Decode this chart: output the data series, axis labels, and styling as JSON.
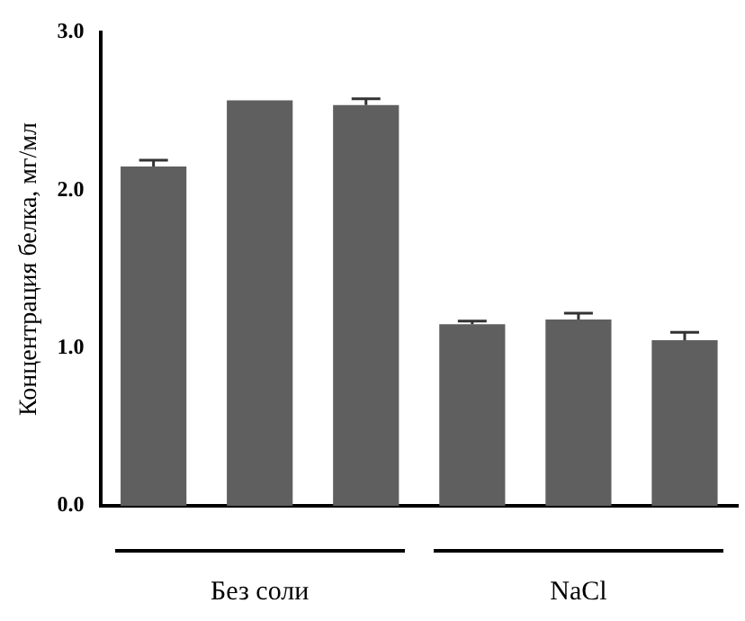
{
  "chart_data": {
    "type": "bar",
    "ylabel": "Концентрация белка, мг/мл",
    "categories": [
      null,
      null,
      null,
      null,
      null,
      null
    ],
    "values": [
      2.15,
      2.57,
      2.54,
      1.15,
      1.18,
      1.05
    ],
    "errors": [
      0.04,
      null,
      0.04,
      0.02,
      0.04,
      0.05
    ],
    "color": "#5f5f5f",
    "ylim": [
      0,
      3
    ],
    "yticks": [
      {
        "value": 0,
        "label": "0.0"
      },
      {
        "value": 1,
        "label": "1.0"
      },
      {
        "value": 2,
        "label": "2.0"
      },
      {
        "value": 3,
        "label": "3.0"
      }
    ],
    "grid": false,
    "legend": false,
    "annotations": [
      "Без соли",
      "NaCl"
    ]
  }
}
